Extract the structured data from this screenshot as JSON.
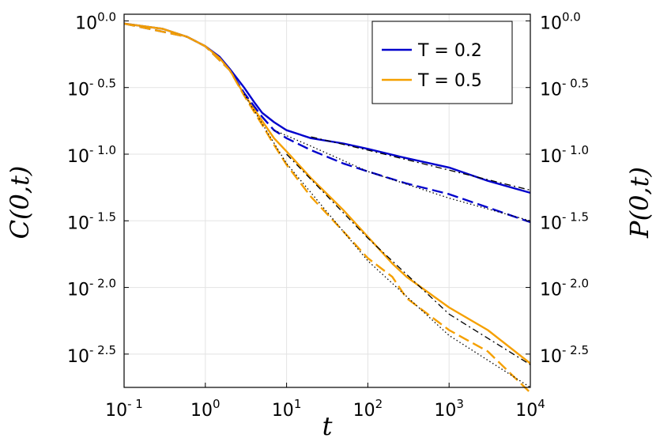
{
  "chart_data": {
    "type": "line",
    "title": "",
    "xlabel": "t",
    "ylabel": "C(0,t)",
    "ylabel_right": "P(0,t)",
    "xscale": "log",
    "yscale": "log",
    "xlim": [
      0.1,
      10000
    ],
    "ylim_log10": [
      -2.75,
      0.05
    ],
    "grid": true,
    "legend_position": "top-right",
    "x_ticks": [
      {
        "base": "10",
        "exp": "- 1",
        "value": 0.1
      },
      {
        "base": "10",
        "exp": "0",
        "value": 1
      },
      {
        "base": "10",
        "exp": "1",
        "value": 10
      },
      {
        "base": "10",
        "exp": "2",
        "value": 100
      },
      {
        "base": "10",
        "exp": "3",
        "value": 1000
      },
      {
        "base": "10",
        "exp": "4",
        "value": 10000
      }
    ],
    "y_ticks": [
      {
        "base": "10",
        "exp": "0.0",
        "value": 0.0
      },
      {
        "base": "10",
        "exp": "- 0.5",
        "value": -0.5
      },
      {
        "base": "10",
        "exp": "- 1.0",
        "value": -1.0
      },
      {
        "base": "10",
        "exp": "- 1.5",
        "value": -1.5
      },
      {
        "base": "10",
        "exp": "- 2.0",
        "value": -2.0
      },
      {
        "base": "10",
        "exp": "- 2.5",
        "value": -2.5
      }
    ],
    "y_ticks_right": [
      {
        "base": "10",
        "exp": "0.0",
        "value": 0.0
      },
      {
        "base": "10",
        "exp": "- 0.5",
        "value": -0.5
      },
      {
        "base": "10",
        "exp": "- 1.0",
        "value": -1.0
      },
      {
        "base": "10",
        "exp": "- 1.5",
        "value": -1.5
      },
      {
        "base": "10",
        "exp": "- 2.0",
        "value": -2.0
      },
      {
        "base": "10",
        "exp": "- 2.5",
        "value": -2.5
      }
    ],
    "series": [
      {
        "name": "T = 0.2",
        "color": "#0000cc",
        "style": "solid",
        "in_legend": true,
        "points": [
          [
            0.1,
            -0.02
          ],
          [
            0.3,
            -0.06
          ],
          [
            0.6,
            -0.12
          ],
          [
            1,
            -0.19
          ],
          [
            1.5,
            -0.27
          ],
          [
            2,
            -0.36
          ],
          [
            3,
            -0.5
          ],
          [
            4,
            -0.61
          ],
          [
            5,
            -0.69
          ],
          [
            7,
            -0.76
          ],
          [
            10,
            -0.82
          ],
          [
            20,
            -0.88
          ],
          [
            50,
            -0.92
          ],
          [
            100,
            -0.96
          ],
          [
            300,
            -1.03
          ],
          [
            1000,
            -1.1
          ],
          [
            3000,
            -1.2
          ],
          [
            10000,
            -1.29
          ]
        ]
      },
      {
        "name": "T = 0.5",
        "color": "#f5a000",
        "style": "solid",
        "in_legend": true,
        "points": [
          [
            0.1,
            -0.02
          ],
          [
            0.3,
            -0.06
          ],
          [
            0.6,
            -0.12
          ],
          [
            1,
            -0.19
          ],
          [
            1.5,
            -0.28
          ],
          [
            2,
            -0.37
          ],
          [
            3,
            -0.55
          ],
          [
            5,
            -0.75
          ],
          [
            7,
            -0.88
          ],
          [
            10,
            -0.98
          ],
          [
            20,
            -1.18
          ],
          [
            50,
            -1.42
          ],
          [
            100,
            -1.62
          ],
          [
            200,
            -1.82
          ],
          [
            300,
            -1.92
          ],
          [
            1000,
            -2.15
          ],
          [
            3000,
            -2.32
          ],
          [
            10000,
            -2.57
          ]
        ]
      },
      {
        "name": "",
        "color": "#0000cc",
        "style": "dashed",
        "in_legend": false,
        "points": [
          [
            0.1,
            -0.02
          ],
          [
            0.6,
            -0.12
          ],
          [
            1,
            -0.19
          ],
          [
            2,
            -0.37
          ],
          [
            3,
            -0.54
          ],
          [
            5,
            -0.72
          ],
          [
            7,
            -0.82
          ],
          [
            10,
            -0.88
          ],
          [
            20,
            -0.97
          ],
          [
            50,
            -1.07
          ],
          [
            100,
            -1.13
          ],
          [
            300,
            -1.22
          ],
          [
            1000,
            -1.3
          ],
          [
            3000,
            -1.4
          ],
          [
            10000,
            -1.51
          ]
        ]
      },
      {
        "name": "",
        "color": "#f5a000",
        "style": "dashed",
        "in_legend": false,
        "points": [
          [
            0.1,
            -0.02
          ],
          [
            0.6,
            -0.12
          ],
          [
            1,
            -0.19
          ],
          [
            2,
            -0.37
          ],
          [
            3,
            -0.56
          ],
          [
            5,
            -0.78
          ],
          [
            7,
            -0.93
          ],
          [
            10,
            -1.08
          ],
          [
            20,
            -1.32
          ],
          [
            50,
            -1.58
          ],
          [
            100,
            -1.78
          ],
          [
            200,
            -1.92
          ],
          [
            300,
            -2.08
          ],
          [
            1000,
            -2.32
          ],
          [
            3000,
            -2.48
          ],
          [
            10000,
            -2.79
          ]
        ]
      },
      {
        "name": "",
        "color": "#000000",
        "style": "dashdot",
        "in_legend": false,
        "points": [
          [
            20,
            -0.87
          ],
          [
            100,
            -0.97
          ],
          [
            1000,
            -1.12
          ],
          [
            10000,
            -1.27
          ]
        ]
      },
      {
        "name": "",
        "color": "#000000",
        "style": "dashdot",
        "in_legend": false,
        "points": [
          [
            10,
            -1.0
          ],
          [
            100,
            -1.63
          ],
          [
            1000,
            -2.2
          ],
          [
            10000,
            -2.58
          ]
        ]
      },
      {
        "name": "",
        "color": "#000000",
        "style": "dotted",
        "in_legend": false,
        "points": [
          [
            7,
            -0.82
          ],
          [
            20,
            -0.94
          ],
          [
            100,
            -1.13
          ],
          [
            1000,
            -1.33
          ],
          [
            10000,
            -1.5
          ]
        ]
      },
      {
        "name": "",
        "color": "#000000",
        "style": "dotted",
        "in_legend": false,
        "points": [
          [
            3,
            -0.55
          ],
          [
            10,
            -1.07
          ],
          [
            100,
            -1.8
          ],
          [
            1000,
            -2.36
          ],
          [
            10000,
            -2.75
          ]
        ]
      }
    ]
  }
}
